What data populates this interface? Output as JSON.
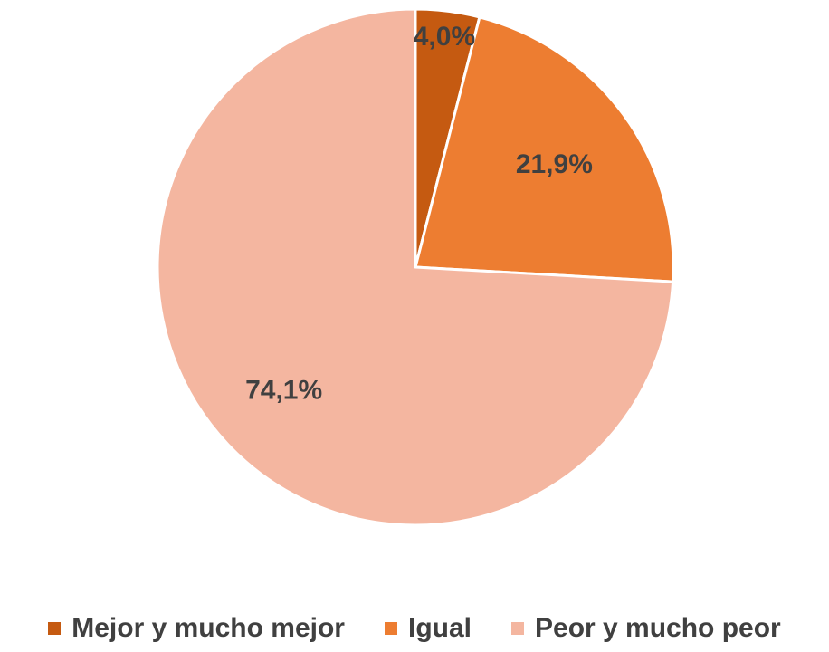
{
  "chart_data": {
    "type": "pie",
    "title": "",
    "slices": [
      {
        "label": "Mejor y mucho mejor",
        "value": 4.0,
        "display": "4,0%",
        "color": "#C55A11"
      },
      {
        "label": "Igual",
        "value": 21.9,
        "display": "21,9%",
        "color": "#ED7D31"
      },
      {
        "label": "Peor y mucho peor",
        "value": 74.1,
        "display": "74,1%",
        "color": "#F4B6A0"
      }
    ],
    "legend_position": "bottom"
  }
}
